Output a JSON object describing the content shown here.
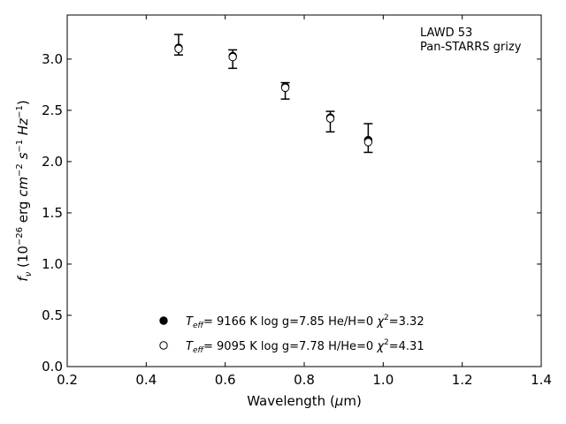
{
  "chart_data": {
    "type": "scatter",
    "xlabel": "Wavelength (μm)",
    "ylabel": "f_ν (10^-26 erg cm^-2 s^-1 Hz^-1)",
    "xlim": [
      0.2,
      1.4
    ],
    "ylim": [
      0.0,
      3.43
    ],
    "xticks": [
      "0.2",
      "0.4",
      "0.6",
      "0.8",
      "1.0",
      "1.2",
      "1.4"
    ],
    "yticks": [
      "0.0",
      "0.5",
      "1.0",
      "1.5",
      "2.0",
      "2.5",
      "3.0"
    ],
    "ticks_direction": "in",
    "grid": false,
    "annotation": [
      "LAWD 53",
      "Pan-STARRS grizy"
    ],
    "annotation_placement": "top-right",
    "observed": {
      "x": [
        0.482,
        0.619,
        0.752,
        0.866,
        0.962
      ],
      "y": [
        3.14,
        3.0,
        2.69,
        2.39,
        2.23
      ],
      "yerr": [
        0.1,
        0.09,
        0.08,
        0.1,
        0.14
      ]
    },
    "series": [
      {
        "name": "T_eff= 9166 K log g=7.85 He/H=0 χ²=3.32",
        "marker": "filled-circle",
        "x": [
          0.482,
          0.619,
          0.752,
          0.866,
          0.962
        ],
        "y": [
          3.11,
          3.03,
          2.73,
          2.43,
          2.21
        ]
      },
      {
        "name": "T_eff= 9095 K log g=7.78 H/He=0 χ²=4.31",
        "marker": "open-circle",
        "x": [
          0.482,
          0.619,
          0.752,
          0.866,
          0.962
        ],
        "y": [
          3.1,
          3.02,
          2.72,
          2.42,
          2.19
        ]
      }
    ],
    "legend_entries": [
      {
        "marker": "filled-circle",
        "teff": "9166 K",
        "logg": "log g=7.85",
        "comp": "He/H=0",
        "chi2": "=3.32"
      },
      {
        "marker": "open-circle",
        "teff": "9095 K",
        "logg": "log g=7.78",
        "comp": "H/He=0",
        "chi2": "=4.31"
      }
    ],
    "legend_placement": "bottom-center"
  }
}
